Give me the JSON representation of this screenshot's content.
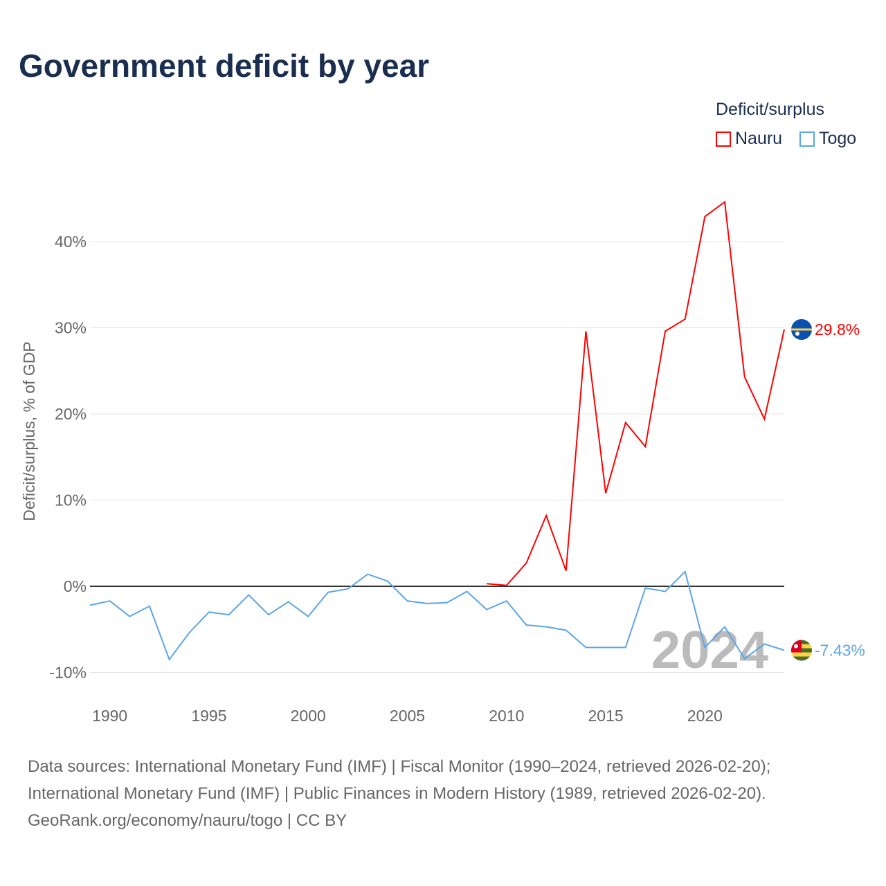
{
  "chart_data": {
    "type": "line",
    "title": "Government deficit by year",
    "ylabel": "Deficit/surplus, % of GDP",
    "xlabel": "",
    "legend_title": "Deficit/surplus",
    "legend_placement": "top-right",
    "ylim": [
      -10,
      45
    ],
    "xlim": [
      1989,
      2024
    ],
    "yticks": [
      -10,
      0,
      10,
      20,
      30,
      40
    ],
    "ytick_labels": [
      "-10%",
      "0%",
      "10%",
      "20%",
      "30%",
      "40%"
    ],
    "xticks": [
      1990,
      1995,
      2000,
      2005,
      2010,
      2015,
      2020
    ],
    "xtick_labels": [
      "1990",
      "1995",
      "2000",
      "2005",
      "2010",
      "2015",
      "2020"
    ],
    "watermark_year": "2024",
    "series": [
      {
        "name": "Nauru",
        "color": "#ff0000",
        "end_label": "29.8%",
        "x": [
          2009,
          2010,
          2011,
          2012,
          2013,
          2014,
          2015,
          2016,
          2017,
          2018,
          2019,
          2020,
          2021,
          2022,
          2023,
          2024
        ],
        "values": [
          0.3,
          0.1,
          2.7,
          8.2,
          1.8,
          29.6,
          10.8,
          19.0,
          16.2,
          29.6,
          31.0,
          42.9,
          44.6,
          24.3,
          19.4,
          29.8
        ]
      },
      {
        "name": "Togo",
        "color": "#5aa5eb",
        "end_label": "-7.43%",
        "x": [
          1989,
          1990,
          1991,
          1992,
          1993,
          1994,
          1995,
          1996,
          1997,
          1998,
          1999,
          2000,
          2001,
          2002,
          2003,
          2004,
          2005,
          2006,
          2007,
          2008,
          2009,
          2010,
          2011,
          2012,
          2013,
          2014,
          2015,
          2016,
          2017,
          2018,
          2019,
          2020,
          2021,
          2022,
          2023,
          2024
        ],
        "values": [
          -2.2,
          -1.7,
          -3.5,
          -2.3,
          -8.5,
          -5.4,
          -3.0,
          -3.3,
          -1.0,
          -3.3,
          -1.8,
          -3.5,
          -0.7,
          -0.3,
          1.4,
          0.6,
          -1.7,
          -2.0,
          -1.9,
          -0.6,
          -2.7,
          -1.7,
          -4.5,
          -4.7,
          -5.1,
          -7.1,
          -7.1,
          -7.1,
          -0.2,
          -0.6,
          1.7,
          -7.1,
          -4.7,
          -8.4,
          -6.7,
          -7.43
        ]
      }
    ]
  },
  "footer": {
    "line1": "Data sources: International Monetary Fund (IMF) | Fiscal Monitor (1990–2024, retrieved 2026-02-20);",
    "line2": "International Monetary Fund (IMF) | Public Finances in Modern History (1989, retrieved 2026-02-20).",
    "line3": "GeoRank.org/economy/nauru/togo | CC BY"
  }
}
